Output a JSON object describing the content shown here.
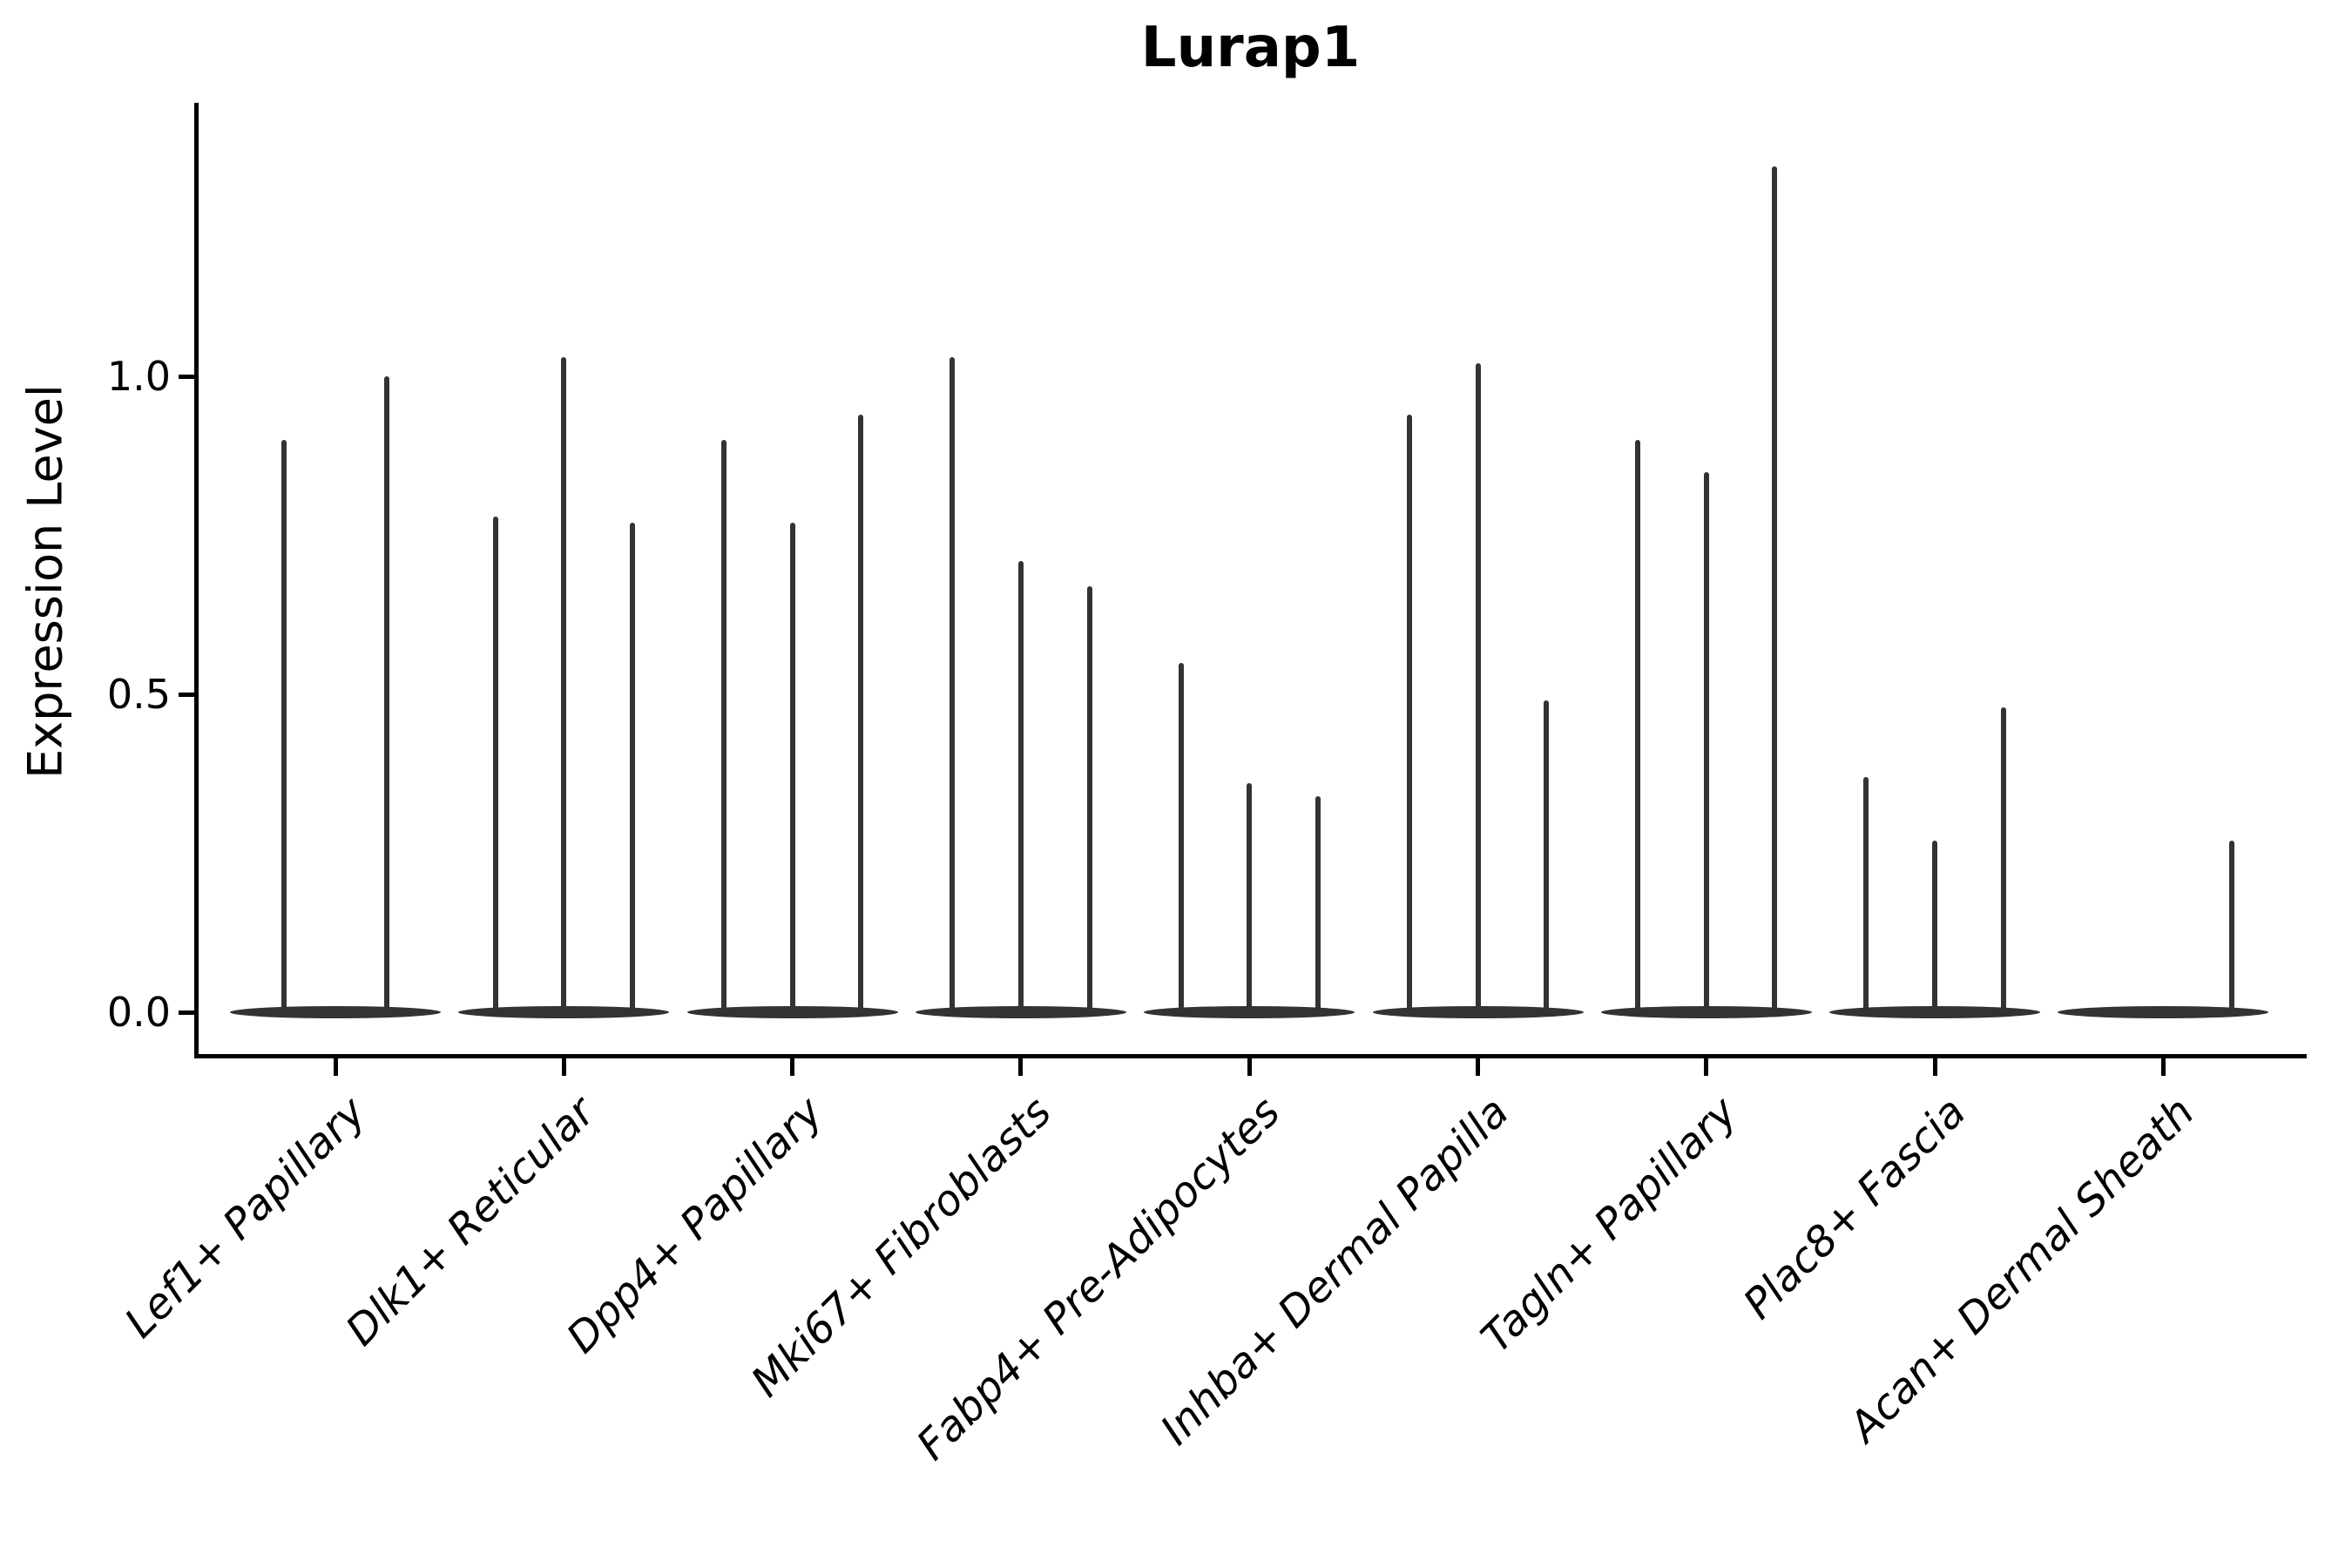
{
  "title": "Lurap1",
  "y_axis_label": "Expression Level",
  "ink_color": "#333333",
  "background_color": "#ffffff",
  "chart_data": {
    "type": "violin",
    "title": "Lurap1",
    "xlabel": "",
    "ylabel": "Expression Level",
    "ylim": [
      -0.07,
      1.43
    ],
    "yticks": [
      0,
      0.5,
      1
    ],
    "ytick_labels": [
      "0.0",
      "0.5",
      "1.0"
    ],
    "grid": false,
    "legend": "none",
    "x_label_rotation_deg": 45,
    "description": "Single-cell expression violin plot; each category shows up to 3 narrow spike-like violins whose mass is concentrated at 0 with a thin spike up to the max expression value.",
    "categories": [
      "Lef1+ Papillary",
      "Dlk1+ Reticular",
      "Dpp4+ Papillary",
      "Mki67+ Fibroblasts",
      "Fabp4+ Pre-Adipocytes",
      "Inhba+ Dermal Papilla",
      "Tagln+ Papillary",
      "Plac8+ Fascia",
      "Acan+ Dermal Sheath"
    ],
    "violins": [
      {
        "category": "Lef1+ Papillary",
        "zero_bulk": true,
        "spikes": [
          {
            "pos": -0.225,
            "max": 0.9
          },
          {
            "pos": 0.225,
            "max": 1.0
          }
        ]
      },
      {
        "category": "Dlk1+ Reticular",
        "zero_bulk": true,
        "spikes": [
          {
            "pos": -0.3,
            "max": 0.78
          },
          {
            "pos": 0,
            "max": 1.03
          },
          {
            "pos": 0.3,
            "max": 0.77
          }
        ]
      },
      {
        "category": "Dpp4+ Papillary",
        "zero_bulk": true,
        "spikes": [
          {
            "pos": -0.3,
            "max": 0.9
          },
          {
            "pos": 0,
            "max": 0.77
          },
          {
            "pos": 0.3,
            "max": 0.94
          }
        ]
      },
      {
        "category": "Mki67+ Fibroblasts",
        "zero_bulk": true,
        "spikes": [
          {
            "pos": -0.3,
            "max": 1.03
          },
          {
            "pos": 0,
            "max": 0.71
          },
          {
            "pos": 0.3,
            "max": 0.67
          }
        ]
      },
      {
        "category": "Fabp4+ Pre-Adipocytes",
        "zero_bulk": true,
        "spikes": [
          {
            "pos": -0.3,
            "max": 0.55
          },
          {
            "pos": 0,
            "max": 0.36
          },
          {
            "pos": 0.3,
            "max": 0.34
          }
        ]
      },
      {
        "category": "Inhba+ Dermal Papilla",
        "zero_bulk": true,
        "spikes": [
          {
            "pos": -0.3,
            "max": 0.94
          },
          {
            "pos": 0,
            "max": 1.02
          },
          {
            "pos": 0.3,
            "max": 0.49
          }
        ]
      },
      {
        "category": "Tagln+ Papillary",
        "zero_bulk": true,
        "spikes": [
          {
            "pos": -0.3,
            "max": 0.9
          },
          {
            "pos": 0,
            "max": 0.85
          },
          {
            "pos": 0.3,
            "max": 1.33
          }
        ]
      },
      {
        "category": "Plac8+ Fascia",
        "zero_bulk": true,
        "spikes": [
          {
            "pos": -0.3,
            "max": 0.37
          },
          {
            "pos": 0,
            "max": 0.27
          },
          {
            "pos": 0.3,
            "max": 0.48
          }
        ]
      },
      {
        "category": "Acan+ Dermal Sheath",
        "zero_bulk": true,
        "spikes": [
          {
            "pos": 0.3,
            "max": 0.27
          }
        ]
      }
    ]
  }
}
